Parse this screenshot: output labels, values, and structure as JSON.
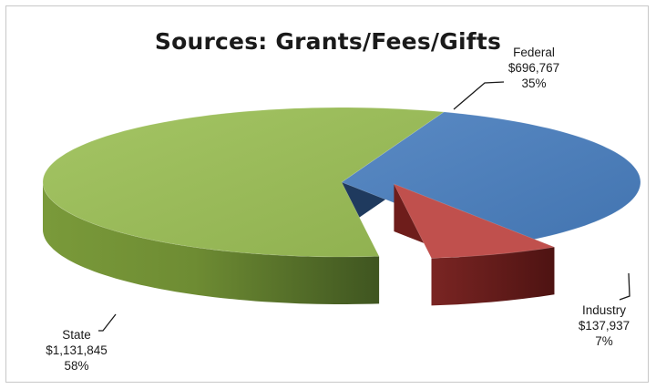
{
  "chart_data": {
    "type": "pie",
    "title": "Sources: Grants/Fees/Gifts",
    "series": [
      {
        "name": "Federal",
        "value": 696767,
        "value_label": "$696,767",
        "percent_label": "35%",
        "color": "#4f81bd",
        "exploded": false
      },
      {
        "name": "Industry",
        "value": 137937,
        "value_label": "$137,937",
        "percent_label": "7%",
        "color": "#c0504d",
        "exploded": true
      },
      {
        "name": "State",
        "value": 1131845,
        "value_label": "$1,131,845",
        "percent_label": "58%",
        "color": "#9bbb59",
        "exploded": false
      }
    ],
    "style": "3d-exploded-pie",
    "legend": "none",
    "data_labels": "outside-with-leader-lines"
  }
}
